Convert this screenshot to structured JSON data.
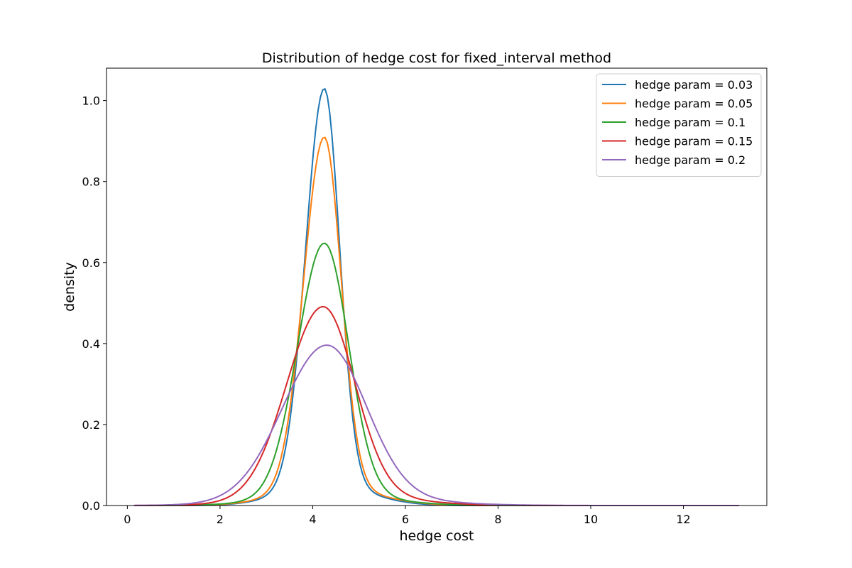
{
  "chart_data": {
    "type": "line",
    "title": "Distribution of hedge cost for fixed_interval method",
    "xlabel": "hedge cost",
    "ylabel": "density",
    "xlim": [
      -0.45,
      13.8
    ],
    "ylim": [
      0,
      1.08
    ],
    "xticks": [
      0,
      2,
      4,
      6,
      8,
      10,
      12
    ],
    "yticks": [
      0.0,
      0.2,
      0.4,
      0.6,
      0.8,
      1.0
    ],
    "xtick_labels": [
      "0",
      "2",
      "4",
      "6",
      "8",
      "10",
      "12"
    ],
    "ytick_labels": [
      "0.0",
      "0.2",
      "0.4",
      "0.6",
      "0.8",
      "1.0"
    ],
    "grid": false,
    "legend_position": "top-right",
    "curve_x_range": [
      0.15,
      13.2
    ],
    "series": [
      {
        "name": "hedge param = 0.03",
        "color": "#1f77b4",
        "mode": 4.25,
        "sigma_left": 0.4,
        "sigma_right": 0.33,
        "peak": 1.03,
        "tail_mu": 4.3,
        "tail_sigma": 0.9,
        "tail_weight": 0.05
      },
      {
        "name": "hedge param = 0.05",
        "color": "#ff7f0e",
        "mode": 4.25,
        "sigma_left": 0.44,
        "sigma_right": 0.36,
        "peak": 0.91,
        "tail_mu": 4.35,
        "tail_sigma": 1.0,
        "tail_weight": 0.05
      },
      {
        "name": "hedge param = 0.1",
        "color": "#2ca02c",
        "mode": 4.25,
        "sigma_left": 0.57,
        "sigma_right": 0.52,
        "peak": 0.648,
        "tail_mu": 4.4,
        "tail_sigma": 1.2,
        "tail_weight": 0.04
      },
      {
        "name": "hedge param = 0.15",
        "color": "#d62728",
        "mode": 4.22,
        "sigma_left": 0.78,
        "sigma_right": 0.68,
        "peak": 0.492,
        "tail_mu": 4.6,
        "tail_sigma": 1.4,
        "tail_weight": 0.05
      },
      {
        "name": "hedge param = 0.2",
        "color": "#9467bd",
        "mode": 4.3,
        "sigma_left": 0.95,
        "sigma_right": 0.85,
        "peak": 0.397,
        "tail_mu": 4.8,
        "tail_sigma": 1.6,
        "tail_weight": 0.05
      }
    ]
  }
}
